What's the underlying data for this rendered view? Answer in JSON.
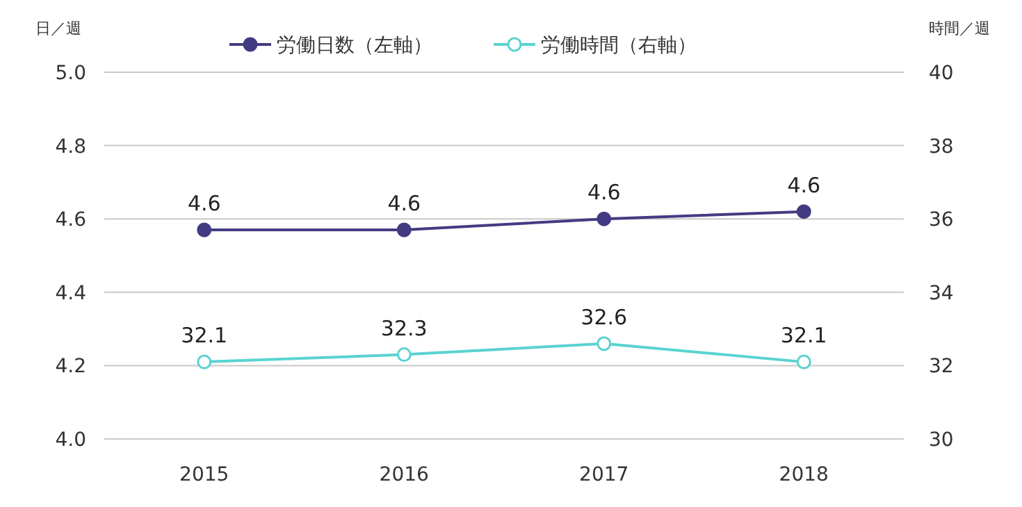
{
  "chart_data": {
    "type": "line",
    "ylabel": "日／週",
    "y2label": "時間／週",
    "categories": [
      "2015",
      "2016",
      "2017",
      "2018"
    ],
    "ylim": [
      4.0,
      5.0
    ],
    "yticks": [
      {
        "value": 4.0,
        "label": "4.0"
      },
      4.2,
      4.4,
      4.6,
      4.8,
      {
        "value": 5.0,
        "label": "5.0"
      }
    ],
    "y2lim": [
      30,
      40
    ],
    "y2ticks": [
      30,
      32,
      34,
      36,
      38,
      40
    ],
    "grid": "y",
    "legend": "top",
    "marker": "circle",
    "line_style": "solid",
    "series": [
      {
        "name": "労働日数（左軸）",
        "color": "#433b82",
        "values": [
          4.57,
          4.57,
          4.6,
          4.62
        ],
        "value_labels": [
          "4.6",
          "4.6",
          "4.6",
          "4.6"
        ]
      },
      {
        "name": "労働時間（右軸）",
        "color": "#5ad3d1",
        "axis": "y2",
        "values": [
          32.1,
          32.3,
          32.6,
          32.1
        ],
        "value_labels": [
          "32.1",
          "32.3",
          "32.6",
          "32.1"
        ]
      }
    ]
  }
}
